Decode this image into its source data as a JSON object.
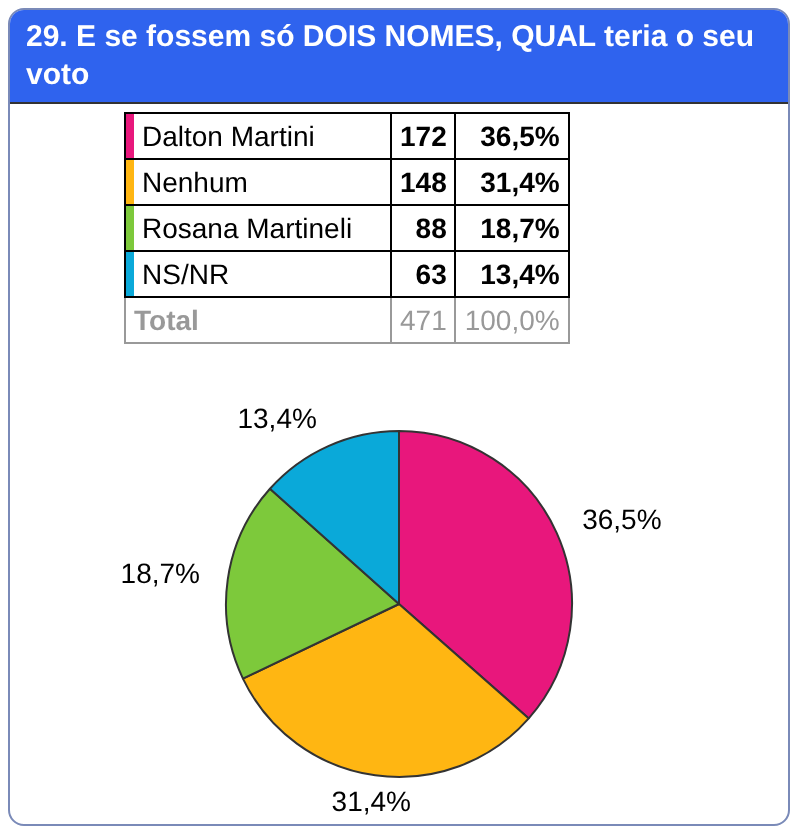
{
  "chart_data": {
    "type": "pie",
    "title": "29. E se fossem só DOIS NOMES, QUAL teria o seu voto",
    "categories": [
      "Dalton Martini",
      "Nenhum",
      "Rosana Martineli",
      "NS/NR"
    ],
    "values": [
      36.5,
      31.4,
      18.7,
      13.4
    ],
    "value_labels": [
      "36,5%",
      "31,4%",
      "18,7%",
      "13,4%"
    ],
    "colors": [
      "#e8177c",
      "#ffb612",
      "#7dc93b",
      "#0aa9d9"
    ],
    "legend": "top",
    "annotations": [
      "172",
      "148",
      "88",
      "63",
      "Total",
      "471",
      "100,0%"
    ]
  }
}
